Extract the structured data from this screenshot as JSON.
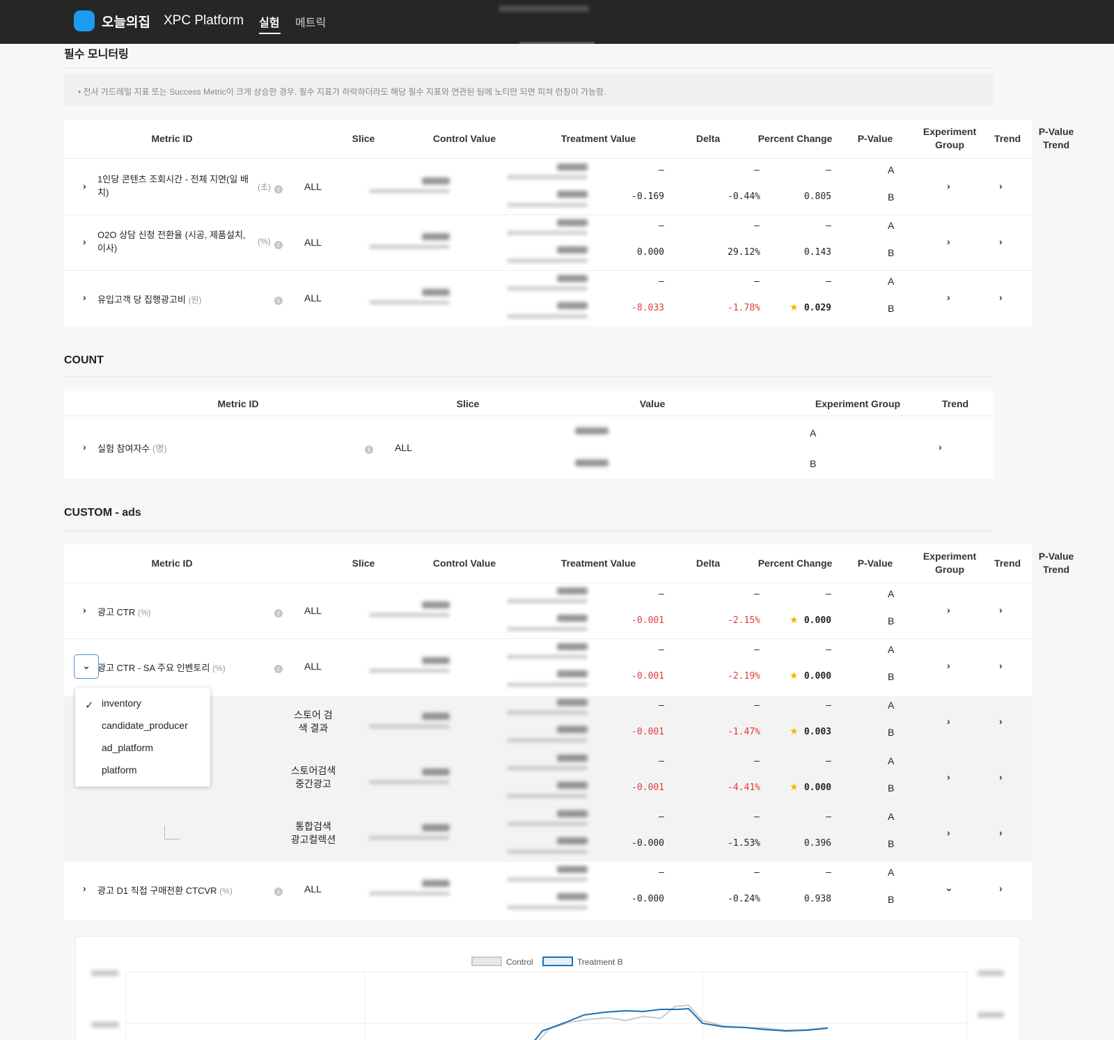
{
  "header": {
    "logo_text": "오늘의집",
    "platform": "XPC Platform",
    "nav": [
      "실험",
      "메트릭"
    ]
  },
  "section1": {
    "title": "필수 모니터링",
    "notice": "• 전사 가드레일 지표 또는 Success Metric이 크게 상승한 경우, 필수 지표가 하락하더라도 해당 필수 지표와 연관된 팀에 노티만 되면 피쳐 런칭이 가능함.",
    "columns": [
      "Metric ID",
      "Slice",
      "Control Value",
      "Treatment Value",
      "Delta",
      "Percent Change",
      "P-Value",
      "Experiment Group",
      "Trend",
      "P-Value Trend"
    ],
    "rows": [
      {
        "name": "1인당 콘텐츠 조회시간 - 전체 지면(일 배치)",
        "name_l1": "1인당 콘텐츠 조회시간 - 전체 지면(일 배",
        "name_l2": "치)",
        "unit": "(초)",
        "slice": "ALL",
        "delta_a": "–",
        "delta_b": "-0.169",
        "pct_a": "–",
        "pct_b": "-0.44%",
        "p_a": "–",
        "p_b": "0.805",
        "group_a": "A",
        "group_b": "B",
        "red": false,
        "star": false
      },
      {
        "name": "O2O 상담 신청 전환율 (시공, 제품설치, 이사)",
        "name_l1": "O2O 상담 신청 전환율 (시공, 제품설치,",
        "name_l2": "이사)",
        "unit": "(%)",
        "slice": "ALL",
        "delta_a": "–",
        "delta_b": "0.000",
        "pct_a": "–",
        "pct_b": "29.12%",
        "p_a": "–",
        "p_b": "0.143",
        "group_a": "A",
        "group_b": "B",
        "red": false,
        "star": false
      },
      {
        "name": "유입고객 당 집행광고비",
        "name_l1": "유입고객 당 집행광고비",
        "name_l2": "",
        "unit": "(원)",
        "slice": "ALL",
        "delta_a": "–",
        "delta_b": "-8.033",
        "pct_a": "–",
        "pct_b": "-1.78%",
        "p_a": "–",
        "p_b": "0.029",
        "group_a": "A",
        "group_b": "B",
        "red": true,
        "star": true
      }
    ]
  },
  "section2": {
    "title": "COUNT",
    "columns": [
      "Metric ID",
      "Slice",
      "Value",
      "Experiment Group",
      "Trend"
    ],
    "rows": [
      {
        "name": "실험 참여자수",
        "unit": "(명)",
        "slice": "ALL",
        "group_a": "A",
        "group_b": "B"
      }
    ]
  },
  "section3": {
    "title": "CUSTOM - ads",
    "columns": [
      "Metric ID",
      "Slice",
      "Control Value",
      "Treatment Value",
      "Delta",
      "Percent Change",
      "P-Value",
      "Experiment Group",
      "Trend",
      "P-Value Trend"
    ],
    "rows": [
      {
        "name": "광고 CTR",
        "unit": "(%)",
        "slice": "ALL",
        "delta_a": "–",
        "delta_b": "-0.001",
        "pct_a": "–",
        "pct_b": "-2.15%",
        "p_a": "–",
        "p_b": "0.000",
        "group_a": "A",
        "group_b": "B",
        "red": true,
        "star": true
      },
      {
        "name": "광고 CTR - SA 주요 인벤토리",
        "unit": "(%)",
        "slice": "ALL",
        "delta_a": "–",
        "delta_b": "-0.001",
        "pct_a": "–",
        "pct_b": "-2.19%",
        "p_a": "–",
        "p_b": "0.000",
        "group_a": "A",
        "group_b": "B",
        "red": true,
        "star": true
      },
      {
        "name": "",
        "unit": "",
        "slice": "스토어 검색 결과",
        "slice_l1": "스토어 검",
        "slice_l2": "색 결과",
        "delta_a": "–",
        "delta_b": "-0.001",
        "pct_a": "–",
        "pct_b": "-1.47%",
        "p_a": "–",
        "p_b": "0.003",
        "group_a": "A",
        "group_b": "B",
        "red": true,
        "star": true
      },
      {
        "name": "",
        "unit": "",
        "slice": "스토어검색 중간광고",
        "slice_l1": "스토어검색",
        "slice_l2": "중간광고",
        "delta_a": "–",
        "delta_b": "-0.001",
        "pct_a": "–",
        "pct_b": "-4.41%",
        "p_a": "–",
        "p_b": "0.000",
        "group_a": "A",
        "group_b": "B",
        "red": true,
        "star": true
      },
      {
        "name": "",
        "unit": "",
        "slice": "통합검색 광고컬렉션",
        "slice_l1": "통합검색",
        "slice_l2": "광고컬렉션",
        "delta_a": "–",
        "delta_b": "-0.000",
        "pct_a": "–",
        "pct_b": "-1.53%",
        "p_a": "–",
        "p_b": "0.396",
        "group_a": "A",
        "group_b": "B",
        "red": false,
        "star": false
      },
      {
        "name": "광고 D1 직접 구매전환 CTCVR",
        "unit": "(%)",
        "slice": "ALL",
        "delta_a": "–",
        "delta_b": "-0.000",
        "pct_a": "–",
        "pct_b": "-0.24%",
        "p_a": "–",
        "p_b": "0.938",
        "group_a": "A",
        "group_b": "B",
        "red": false,
        "star": false
      }
    ],
    "dropdown_options": [
      "inventory",
      "candidate_producer",
      "ad_platform",
      "platform"
    ],
    "dropdown_selected": "inventory"
  },
  "chart": {
    "legend": [
      "Control",
      "Treatment B"
    ],
    "colors": {
      "control": "#c9c9c9",
      "treatment": "#1f6fb2"
    }
  }
}
